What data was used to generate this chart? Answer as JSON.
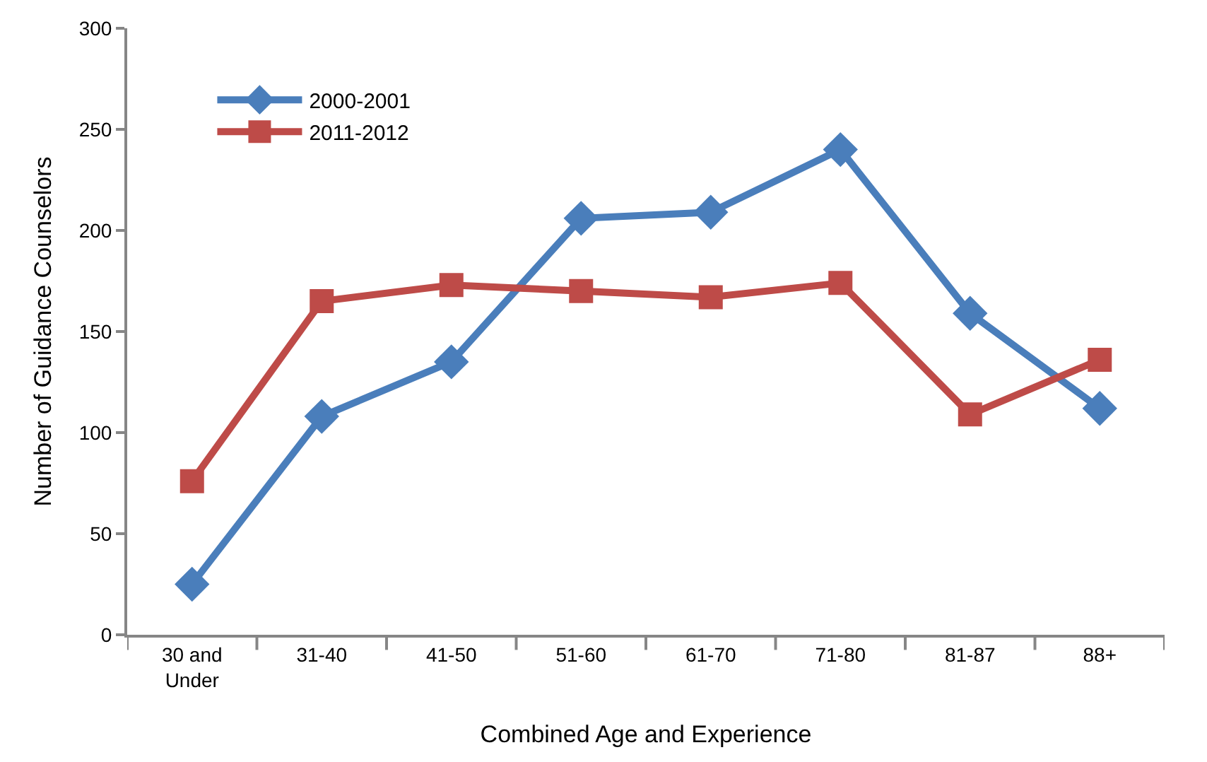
{
  "chart_data": {
    "type": "line",
    "xlabel": "Combined Age and Experience",
    "ylabel": "Number of Guidance Counselors",
    "categories": [
      "30 and\nUnder",
      "31-40",
      "41-50",
      "51-60",
      "61-70",
      "71-80",
      "81-87",
      "88+"
    ],
    "series": [
      {
        "name": "2000-2001",
        "color": "#4a7ebb",
        "marker": "diamond",
        "values": [
          25,
          108,
          135,
          206,
          209,
          240,
          159,
          112
        ]
      },
      {
        "name": "2011-2012",
        "color": "#be4b48",
        "marker": "square",
        "values": [
          76,
          165,
          173,
          170,
          167,
          174,
          109,
          136
        ]
      }
    ],
    "ylim": [
      0,
      300
    ],
    "yticks": [
      0,
      50,
      100,
      150,
      200,
      250,
      300
    ],
    "legend": "top left",
    "line_style": "solid"
  }
}
